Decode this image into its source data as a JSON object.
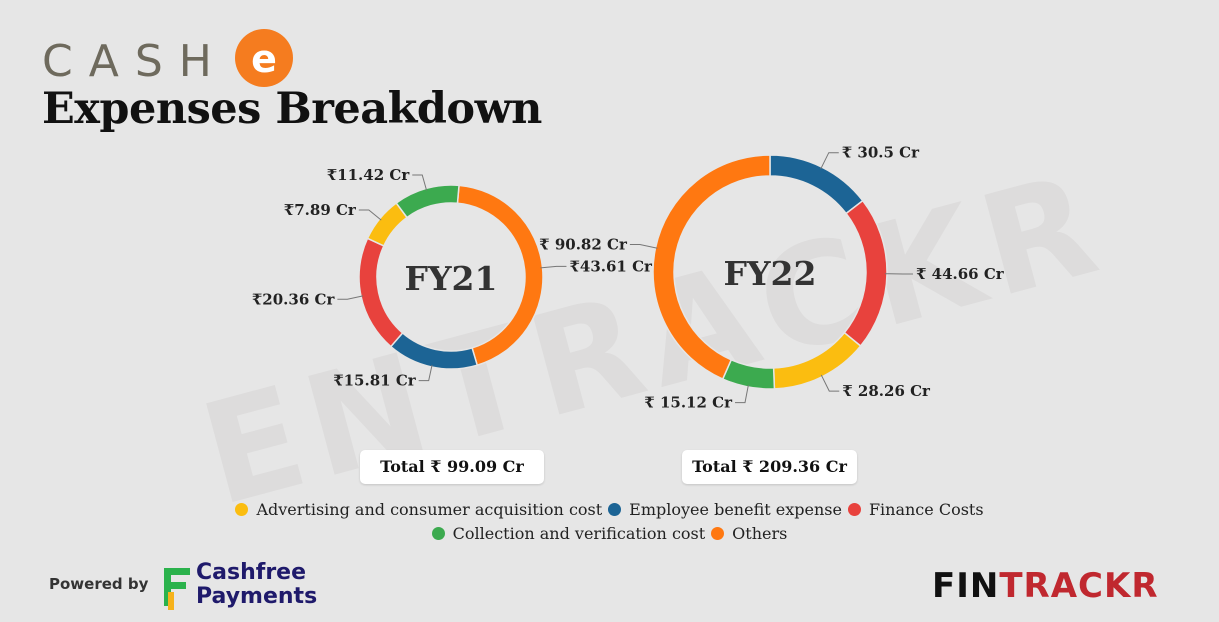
{
  "brand": {
    "name": "CASH",
    "badge_letter": "e",
    "badge_color": "#f57c1f",
    "text_color": "#6e6a5d"
  },
  "title": "Expenses Breakdown",
  "watermark": "ENTRACKR",
  "colors": {
    "Advertising and consumer acquisition cost": "#fbbd10",
    "Employee benefit expense": "#1c6495",
    "Finance Costs": "#e8423d",
    "Collection and verification cost": "#3caa4f",
    "Others": "#ff7811"
  },
  "chart_data": [
    {
      "type": "pie",
      "center_label": "FY21",
      "total_label": "Total ₹ 99.09 Cr",
      "slices": [
        {
          "name": "Others",
          "value": 43.61,
          "label": "₹43.61 Cr"
        },
        {
          "name": "Employee benefit expense",
          "value": 15.81,
          "label": "₹15.81 Cr"
        },
        {
          "name": "Finance Costs",
          "value": 20.36,
          "label": "₹20.36 Cr"
        },
        {
          "name": "Advertising and consumer acquisition cost",
          "value": 7.89,
          "label": "₹7.89 Cr"
        },
        {
          "name": "Collection and verification cost",
          "value": 11.42,
          "label": "₹11.42 Cr"
        }
      ]
    },
    {
      "type": "pie",
      "center_label": "FY22",
      "total_label": "Total ₹ 209.36 Cr",
      "slices": [
        {
          "name": "Employee benefit expense",
          "value": 30.5,
          "label": "₹ 30.5 Cr"
        },
        {
          "name": "Finance Costs",
          "value": 44.66,
          "label": "₹ 44.66 Cr"
        },
        {
          "name": "Advertising and consumer acquisition cost",
          "value": 28.26,
          "label": "₹ 28.26 Cr"
        },
        {
          "name": "Collection and verification cost",
          "value": 15.12,
          "label": "₹ 15.12 Cr"
        },
        {
          "name": "Others",
          "value": 90.82,
          "label": "₹ 90.82 Cr"
        }
      ]
    }
  ],
  "legend": {
    "row1": [
      {
        "label": "Advertising and consumer acquisition cost",
        "color": "#fbbd10"
      },
      {
        "label": "Employee benefit expense",
        "color": "#1c6495"
      },
      {
        "label": "Finance Costs",
        "color": "#e8423d"
      }
    ],
    "row2": [
      {
        "label": "Collection and verification cost",
        "color": "#3caa4f"
      },
      {
        "label": "Others",
        "color": "#ff7811"
      }
    ]
  },
  "footer": {
    "powered_by": "Powered by",
    "partner_line1": "Cashfree",
    "partner_line2": "Payments",
    "logo_fin": "FIN",
    "logo_trackr": "TRACKR"
  }
}
